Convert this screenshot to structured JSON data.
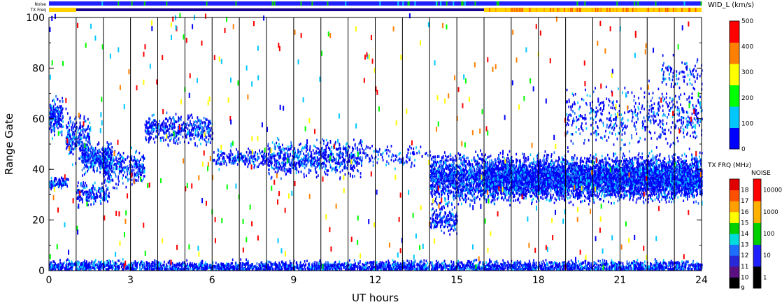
{
  "chart_data": {
    "type": "scatter",
    "xlabel": "UT hours",
    "ylabel": "Range Gate",
    "xlim": [
      0,
      24
    ],
    "ylim": [
      0,
      100
    ],
    "x_ticks": [
      "0",
      "3",
      "6",
      "9",
      "12",
      "15",
      "18",
      "21",
      "24"
    ],
    "y_ticks": [
      "0",
      "20",
      "40",
      "60",
      "80",
      "100"
    ],
    "vertical_lines_hours": [
      1,
      2,
      3,
      4,
      5,
      6,
      7,
      8,
      9,
      10,
      11,
      12,
      13,
      14,
      15,
      16,
      17,
      18,
      19,
      20,
      21,
      22,
      23
    ],
    "top_strips": [
      {
        "label": "Noise",
        "main_color": "#2020ff"
      },
      {
        "label": "TX Freq",
        "segments": [
          {
            "from": 0,
            "to": 1,
            "color": "#ffd200"
          },
          {
            "from": 1,
            "to": 16,
            "color": "#1a0090"
          },
          {
            "from": 16,
            "to": 24,
            "color": "#ffd200"
          }
        ]
      }
    ],
    "color_scales": [
      {
        "title": "WID_L (km/s)",
        "tick_labels": [
          "0",
          "100",
          "200",
          "300",
          "400",
          "500"
        ],
        "colors": [
          "#0000ff",
          "#00c8ff",
          "#00ff00",
          "#ffff00",
          "#ff8000",
          "#ff0000"
        ]
      },
      {
        "title": "TX FRQ (MHz)",
        "tick_labels": [
          "9",
          "10",
          "11",
          "12",
          "13",
          "14",
          "15",
          "16",
          "17",
          "18"
        ],
        "colors": [
          "#000000",
          "#5a1080",
          "#2828d8",
          "#1e6eff",
          "#00dcdc",
          "#00d000",
          "#ffff00",
          "#ffa000",
          "#ff5000",
          "#e00000"
        ]
      },
      {
        "title": "NOISE",
        "tick_labels": [
          "1",
          "10",
          "100",
          "1000",
          "10000"
        ],
        "colors": [
          "#000000",
          "#2020ff",
          "#00d000",
          "#ffb000",
          "#ff0000"
        ]
      }
    ],
    "echo_regions": [
      {
        "x": [
          0.0,
          0.5
        ],
        "y_center": 60,
        "y_spread": 6,
        "density": "high",
        "dominant_color": "blue"
      },
      {
        "x": [
          0.0,
          0.7
        ],
        "y_center": 34,
        "y_spread": 2,
        "density": "high",
        "dominant_color": "blue"
      },
      {
        "x": [
          0.6,
          1.5
        ],
        "y_center": 52,
        "y_spread": 8,
        "density": "medium",
        "dominant_color": "blue"
      },
      {
        "x": [
          1.0,
          2.2
        ],
        "y_center": 30,
        "y_spread": 4,
        "density": "medium",
        "dominant_color": "blue"
      },
      {
        "x": [
          1.2,
          2.3
        ],
        "y_center": 44,
        "y_spread": 5,
        "density": "high",
        "dominant_color": "blue"
      },
      {
        "x": [
          2.0,
          3.5
        ],
        "y_center": 40,
        "y_spread": 6,
        "density": "medium",
        "dominant_color": "blue"
      },
      {
        "x": [
          3.5,
          6.0
        ],
        "y_center": 55,
        "y_spread": 5,
        "density": "medium",
        "dominant_color": "blue"
      },
      {
        "x": [
          6.0,
          8.0
        ],
        "y_center": 44,
        "y_spread": 3,
        "density": "medium",
        "dominant_color": "blue"
      },
      {
        "x": [
          8.0,
          11.5
        ],
        "y_center": 44,
        "y_spread": 6,
        "density": "medium",
        "dominant_color": "blue"
      },
      {
        "x": [
          11.5,
          14.0
        ],
        "y_center": 45,
        "y_spread": 4,
        "density": "low",
        "dominant_color": "blue"
      },
      {
        "x": [
          14.0,
          16.0
        ],
        "y_center": 36,
        "y_spread": 8,
        "density": "high",
        "dominant_color": "blue"
      },
      {
        "x": [
          14.0,
          15.0
        ],
        "y_center": 20,
        "y_spread": 5,
        "density": "medium",
        "dominant_color": "blue"
      },
      {
        "x": [
          16.0,
          24.0
        ],
        "y_center": 36,
        "y_spread": 7,
        "density": "very high",
        "dominant_color": "blue"
      },
      {
        "x": [
          19.0,
          24.0
        ],
        "y_center": 60,
        "y_spread": 10,
        "density": "low",
        "dominant_color": "blue"
      },
      {
        "x": [
          22.5,
          24.0
        ],
        "y_center": 77,
        "y_spread": 6,
        "density": "low",
        "dominant_color": "blue"
      },
      {
        "x": [
          0.0,
          24.0
        ],
        "y_center": 1,
        "y_spread": 2,
        "density": "high",
        "dominant_color": "blue"
      }
    ]
  }
}
